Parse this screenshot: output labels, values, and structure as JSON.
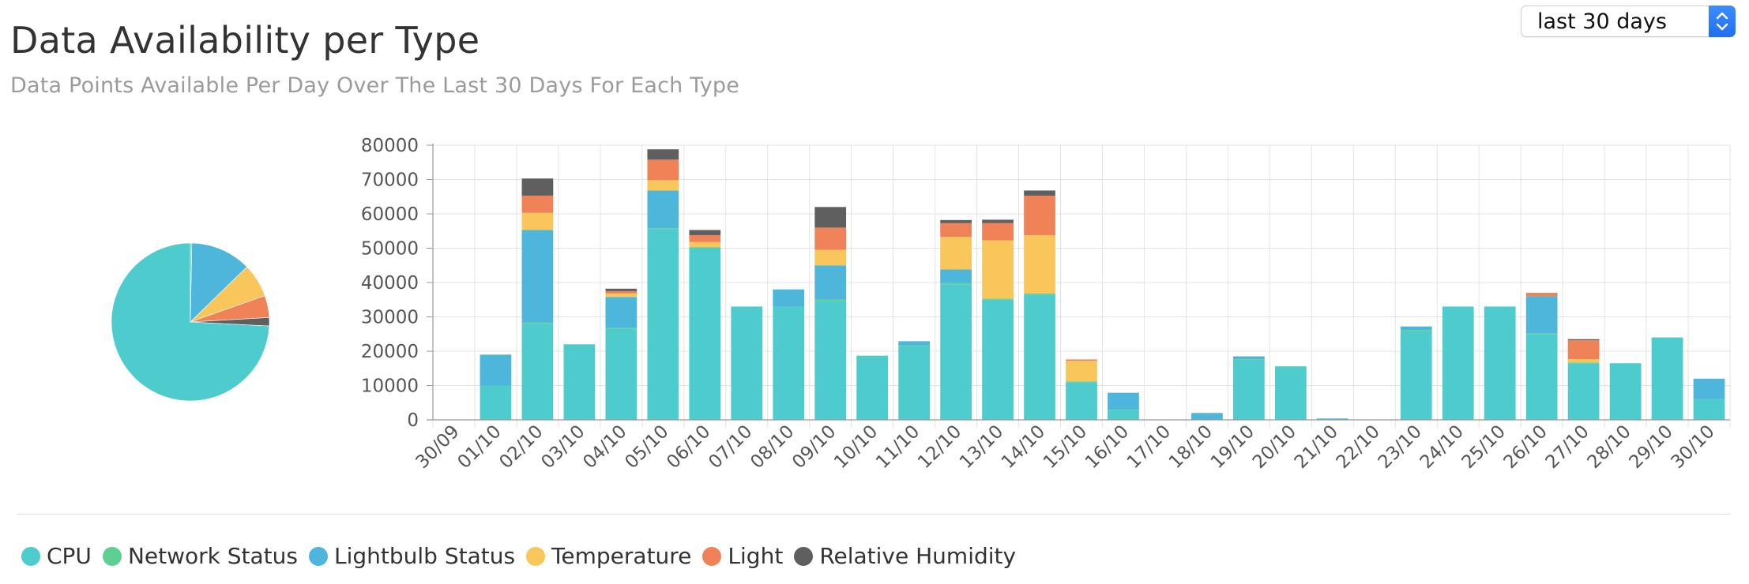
{
  "header": {
    "title": "Data Availability per Type",
    "subtitle": "Data Points Available Per Day Over The Last 30 Days For Each Type"
  },
  "range_select": {
    "value": "last 30 days",
    "icon": "chevron-up-down-icon"
  },
  "colors": {
    "CPU": "#4ecbcd",
    "Network Status": "#5dcf91",
    "Lightbulb Status": "#4db6da",
    "Temperature": "#f8c65b",
    "Light": "#ef8257",
    "Relative Humidity": "#5f5f5f"
  },
  "chart_data": [
    {
      "type": "pie",
      "title": "",
      "labels": [
        "CPU",
        "Network Status",
        "Lightbulb Status",
        "Temperature",
        "Light",
        "Relative Humidity"
      ],
      "values": [
        74.2,
        0.3,
        12.4,
        6.9,
        4.5,
        1.7
      ],
      "unit": "percent of data points"
    },
    {
      "type": "bar",
      "stacked": true,
      "title": "",
      "xlabel": "",
      "ylabel": "",
      "ylim": [
        0,
        80000
      ],
      "y_ticks": [
        0,
        10000,
        20000,
        30000,
        40000,
        50000,
        60000,
        70000,
        80000
      ],
      "grid": true,
      "categories": [
        "30/09",
        "01/10",
        "02/10",
        "03/10",
        "04/10",
        "05/10",
        "06/10",
        "07/10",
        "08/10",
        "09/10",
        "10/10",
        "11/10",
        "12/10",
        "13/10",
        "14/10",
        "15/10",
        "16/10",
        "17/10",
        "18/10",
        "19/10",
        "20/10",
        "21/10",
        "22/10",
        "23/10",
        "24/10",
        "25/10",
        "26/10",
        "27/10",
        "28/10",
        "29/10",
        "30/10"
      ],
      "series": [
        {
          "name": "CPU",
          "values": [
            0,
            10000,
            28000,
            22000,
            26500,
            55500,
            50000,
            33000,
            33000,
            34500,
            18500,
            21500,
            39500,
            35000,
            36500,
            11000,
            2800,
            0,
            0,
            17500,
            15500,
            0,
            0,
            26000,
            33000,
            33000,
            25000,
            16500,
            16500,
            24000,
            6000
          ]
        },
        {
          "name": "Network Status",
          "values": [
            0,
            0,
            300,
            0,
            300,
            300,
            300,
            0,
            0,
            500,
            200,
            200,
            300,
            300,
            300,
            200,
            100,
            0,
            0,
            200,
            100,
            0,
            0,
            200,
            0,
            0,
            200,
            200,
            0,
            0,
            0
          ]
        },
        {
          "name": "Lightbulb Status",
          "values": [
            0,
            9000,
            27000,
            0,
            9000,
            11000,
            0,
            0,
            5000,
            10000,
            0,
            1200,
            4000,
            0,
            0,
            0,
            5000,
            0,
            2000,
            800,
            0,
            400,
            0,
            1000,
            0,
            0,
            10800,
            0,
            0,
            0,
            6000
          ]
        },
        {
          "name": "Temperature",
          "values": [
            0,
            0,
            5000,
            0,
            1000,
            3000,
            1500,
            0,
            0,
            4500,
            0,
            0,
            9500,
            17000,
            17000,
            6000,
            0,
            0,
            0,
            0,
            0,
            0,
            0,
            0,
            0,
            0,
            0,
            1000,
            0,
            0,
            0
          ]
        },
        {
          "name": "Light",
          "values": [
            0,
            0,
            5000,
            0,
            700,
            6000,
            2000,
            0,
            0,
            6500,
            0,
            0,
            4000,
            5000,
            11500,
            400,
            0,
            0,
            0,
            0,
            0,
            0,
            0,
            0,
            0,
            0,
            1000,
            5500,
            0,
            0,
            0
          ]
        },
        {
          "name": "Relative Humidity",
          "values": [
            0,
            0,
            5000,
            0,
            700,
            3000,
            1500,
            0,
            0,
            6000,
            0,
            0,
            900,
            1000,
            1500,
            0,
            0,
            0,
            0,
            0,
            0,
            0,
            0,
            0,
            0,
            0,
            0,
            300,
            0,
            0,
            0
          ]
        }
      ]
    }
  ],
  "legend": [
    {
      "label": "CPU"
    },
    {
      "label": "Network Status"
    },
    {
      "label": "Lightbulb Status"
    },
    {
      "label": "Temperature"
    },
    {
      "label": "Light"
    },
    {
      "label": "Relative Humidity"
    }
  ]
}
